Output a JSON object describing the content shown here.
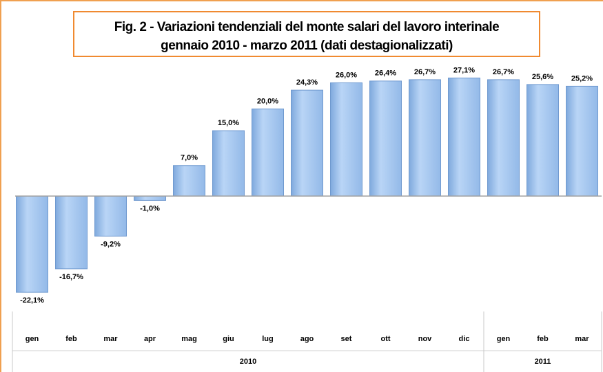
{
  "chart_data": {
    "type": "bar",
    "title": [
      "Fig. 2 - Variazioni tendenziali del monte salari del lavoro interinale",
      "gennaio 2010 - marzo 2011 (dati destagionalizzati)"
    ],
    "categories": [
      "gen",
      "feb",
      "mar",
      "apr",
      "mag",
      "giu",
      "lug",
      "ago",
      "set",
      "ott",
      "nov",
      "dic",
      "gen",
      "feb",
      "mar"
    ],
    "values": [
      -22.1,
      -16.7,
      -9.2,
      -1.0,
      7.0,
      15.0,
      20.0,
      24.3,
      26.0,
      26.4,
      26.7,
      27.1,
      26.7,
      25.6,
      25.2
    ],
    "value_labels": [
      "-22,1%",
      "-16,7%",
      "-9,2%",
      "-1,0%",
      "7,0%",
      "15,0%",
      "20,0%",
      "24,3%",
      "26,0%",
      "26,4%",
      "26,7%",
      "27,1%",
      "26,7%",
      "25,6%",
      "25,2%"
    ],
    "groups": [
      {
        "label": "2010",
        "count": 12
      },
      {
        "label": "2011",
        "count": 3
      }
    ],
    "color": "#a3c6f2",
    "ylim": [
      -25,
      30
    ]
  }
}
